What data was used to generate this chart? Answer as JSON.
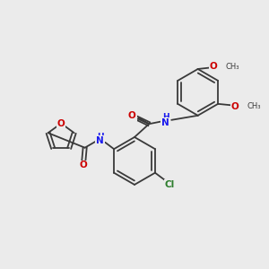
{
  "bg_color": "#ebebeb",
  "bond_color": "#3a3a3a",
  "atom_colors": {
    "O": "#cc0000",
    "N": "#1a1aee",
    "Cl": "#2d7d2d",
    "C": "#3a3a3a"
  },
  "lw": 1.3,
  "dbo": 0.06,
  "fs": 7.5,
  "xlim": [
    0,
    10
  ],
  "ylim": [
    0,
    10
  ]
}
